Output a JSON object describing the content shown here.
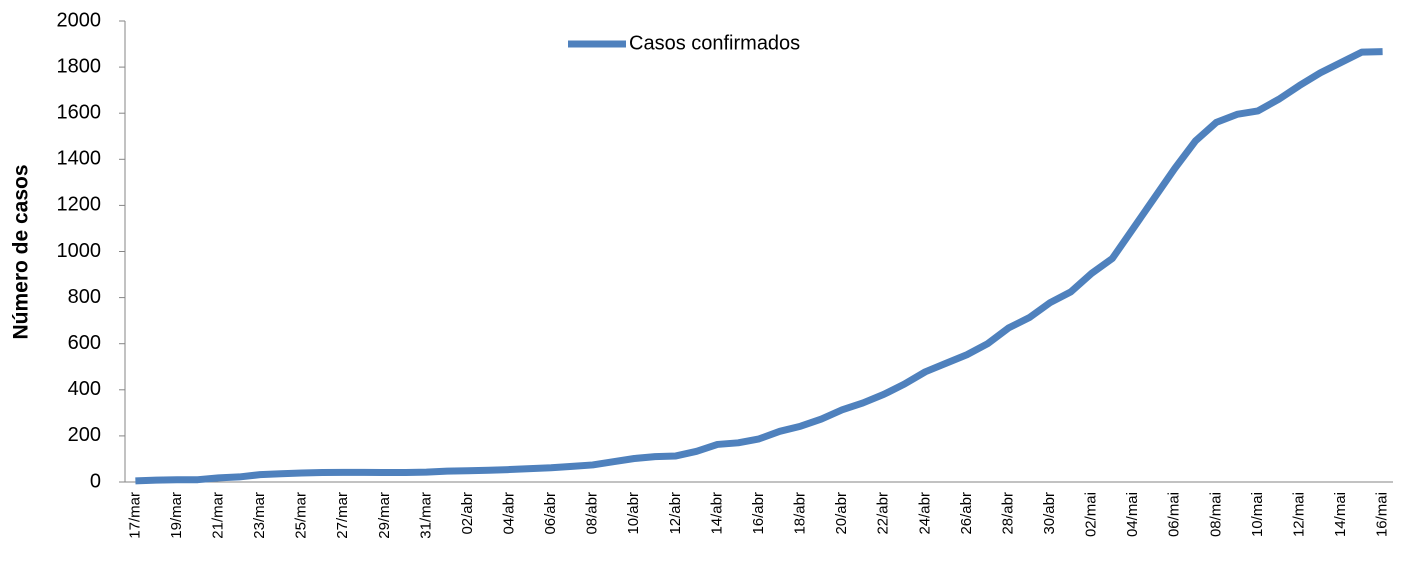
{
  "chart_data": {
    "type": "line",
    "y_label": "Número de casos",
    "categories": [
      "17/mar",
      null,
      "19/mar",
      null,
      "21/mar",
      null,
      "23/mar",
      null,
      "25/mar",
      null,
      "27/mar",
      null,
      "29/mar",
      null,
      "31/mar",
      null,
      "02/abr",
      null,
      "04/abr",
      null,
      "06/abr",
      null,
      "08/abr",
      null,
      "10/abr",
      null,
      "12/abr",
      null,
      "14/abr",
      null,
      "16/abr",
      null,
      "18/abr",
      null,
      "20/abr",
      null,
      "22/abr",
      null,
      "24/abr",
      null,
      "26/abr",
      null,
      "28/abr",
      null,
      "30/abr",
      null,
      "02/mai",
      null,
      "04/mai",
      null,
      "06/mai",
      null,
      "08/mai",
      null,
      "10/mai",
      null,
      "12/mai",
      null,
      "14/mai",
      null,
      "16/mai"
    ],
    "series": [
      {
        "name": "Casos confirmados",
        "color": "#4f81bd",
        "values": [
          5,
          8,
          10,
          10,
          18,
          22,
          32,
          36,
          39,
          41,
          42,
          42,
          41,
          41,
          43,
          47,
          49,
          51,
          54,
          58,
          62,
          68,
          74,
          88,
          102,
          110,
          113,
          133,
          163,
          170,
          187,
          220,
          242,
          273,
          313,
          343,
          380,
          425,
          478,
          515,
          552,
          600,
          668,
          713,
          778,
          825,
          905,
          970,
          1100,
          1230,
          1360,
          1480,
          1560,
          1595,
          1610,
          1660,
          1720,
          1775,
          1820,
          1865,
          1867
        ]
      }
    ],
    "ylim": [
      0,
      2000
    ],
    "yticks": [
      0,
      200,
      400,
      600,
      800,
      1000,
      1200,
      1400,
      1600,
      1800,
      2000
    ],
    "legend": "top",
    "grid": false
  }
}
